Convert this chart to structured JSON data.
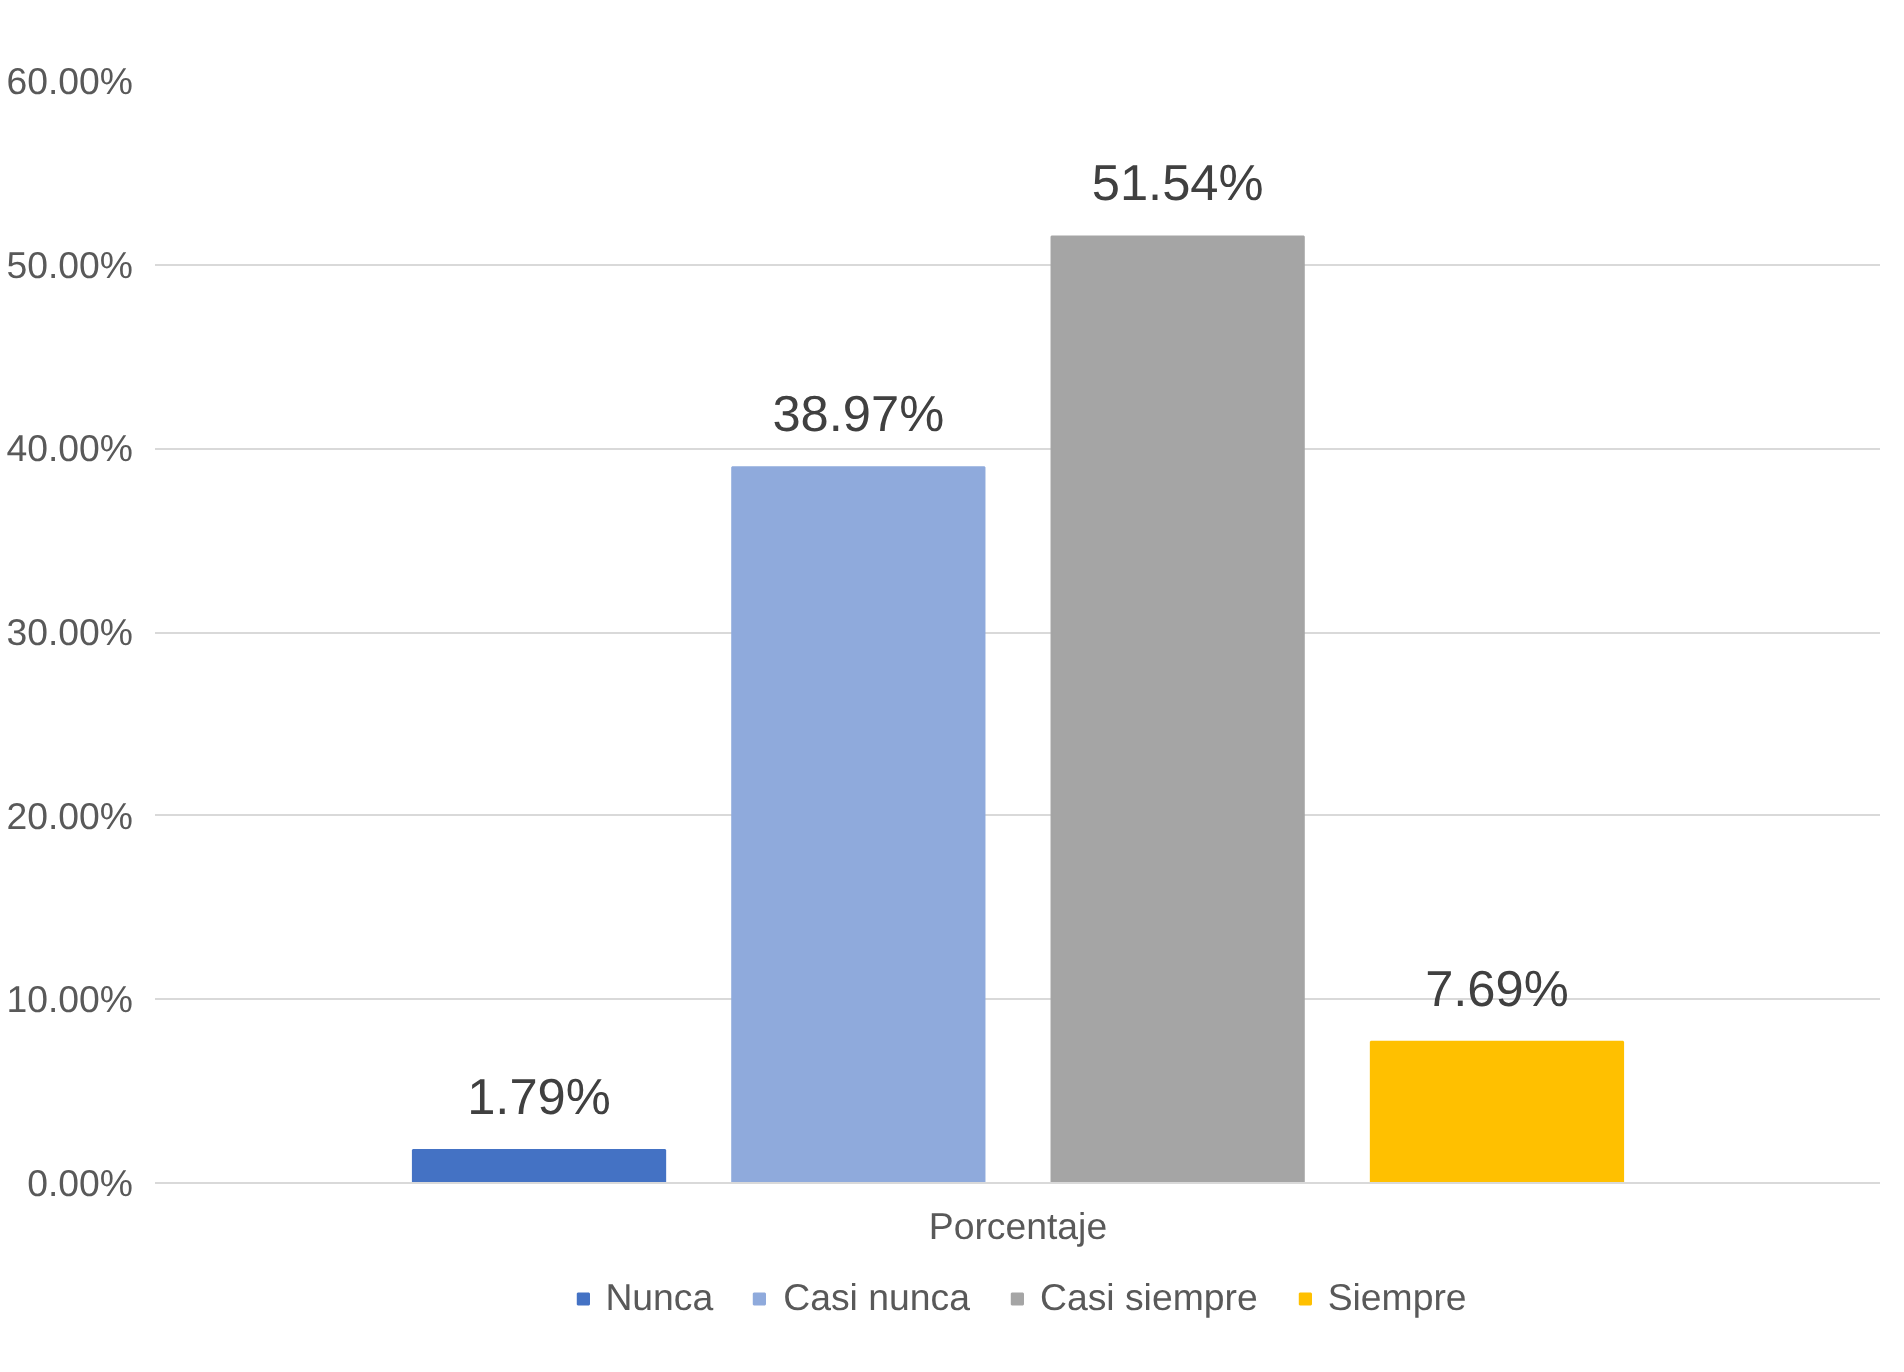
{
  "chart_data": {
    "type": "bar",
    "categories": [
      "Porcentaje"
    ],
    "series": [
      {
        "name": "Nunca",
        "color": "#4472c4",
        "values": [
          1.79
        ],
        "value_labels": [
          "1.79%"
        ]
      },
      {
        "name": "Casi nunca",
        "color": "#8faadc",
        "values": [
          38.97
        ],
        "value_labels": [
          "38.97%"
        ]
      },
      {
        "name": "Casi siempre",
        "color": "#a5a5a5",
        "values": [
          51.54
        ],
        "value_labels": [
          "51.54%"
        ]
      },
      {
        "name": "Siempre",
        "color": "#ffc000",
        "values": [
          7.69
        ],
        "value_labels": [
          "7.69%"
        ]
      }
    ],
    "ylim": [
      0,
      60
    ],
    "yticks": [
      {
        "value": 0,
        "label": "0.00%"
      },
      {
        "value": 10,
        "label": "10.00%"
      },
      {
        "value": 20,
        "label": "20.00%"
      },
      {
        "value": 30,
        "label": "30.00%"
      },
      {
        "value": 40,
        "label": "40.00%"
      },
      {
        "value": 50,
        "label": "50.00%"
      },
      {
        "value": 60,
        "label": "60.00%"
      }
    ],
    "grid": "y",
    "legend": "bottom"
  }
}
